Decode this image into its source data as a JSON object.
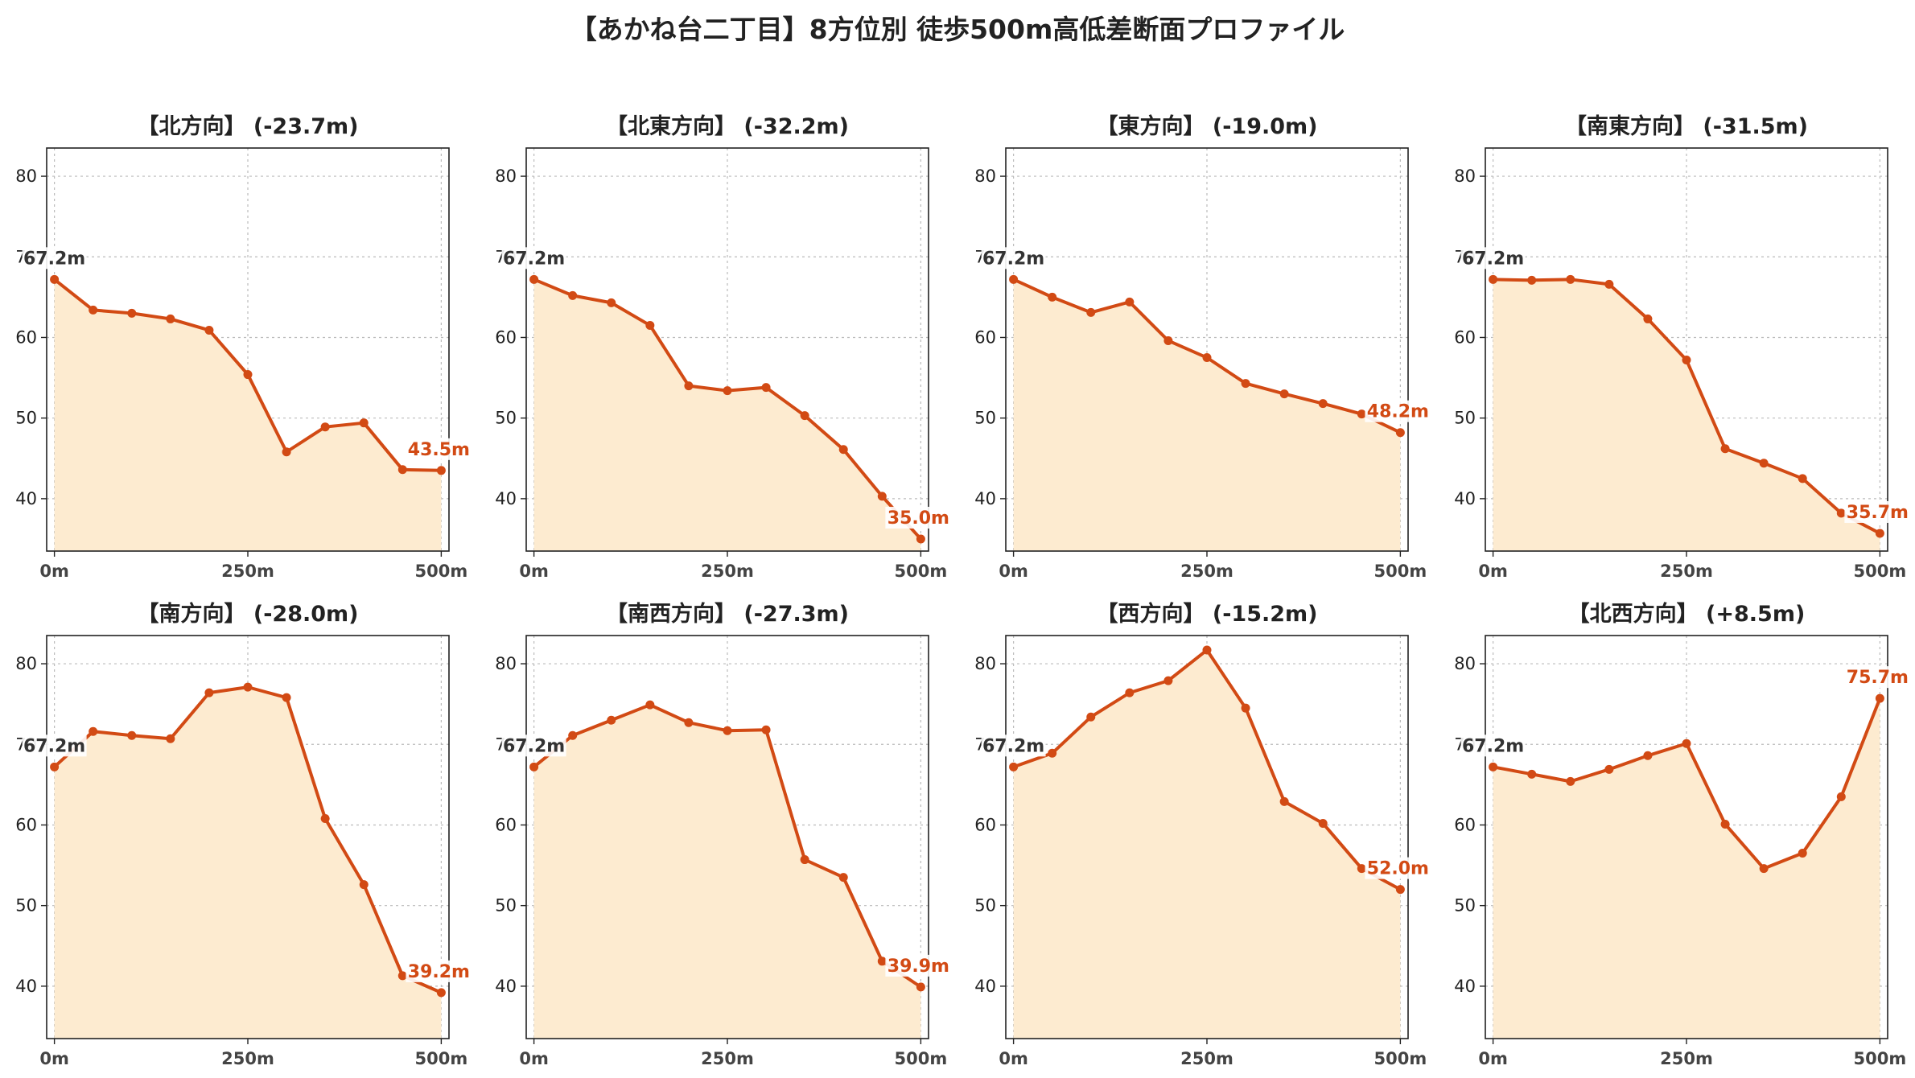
{
  "title": "【あかね台二丁目】8方位別 徒歩500m高低差断面プロファイル",
  "colors": {
    "line": "#d24a14",
    "fill": "#fdebd0",
    "grid": "#bbbbbb",
    "start_label": "#333333",
    "end_label": "#d24a14"
  },
  "chart_data": [
    {
      "type": "area",
      "title": "【北方向】 (-23.7m)",
      "x": [
        0,
        50,
        100,
        150,
        200,
        250,
        300,
        350,
        400,
        450,
        500
      ],
      "values": [
        67.2,
        63.4,
        63.0,
        62.3,
        60.9,
        55.4,
        45.8,
        48.9,
        49.4,
        43.6,
        43.5
      ],
      "xticks": [
        "0m",
        "250m",
        "500m"
      ],
      "yticks": [
        40,
        50,
        60,
        70,
        80
      ],
      "ylim": [
        33.5,
        83.5
      ],
      "xlim": [
        -10,
        510
      ],
      "start_label": "67.2m",
      "end_label": "43.5m"
    },
    {
      "type": "area",
      "title": "【北東方向】 (-32.2m)",
      "x": [
        0,
        50,
        100,
        150,
        200,
        250,
        300,
        350,
        400,
        450,
        500
      ],
      "values": [
        67.2,
        65.2,
        64.3,
        61.5,
        54.0,
        53.4,
        53.8,
        50.3,
        46.1,
        40.3,
        35.0
      ],
      "xticks": [
        "0m",
        "250m",
        "500m"
      ],
      "yticks": [
        40,
        50,
        60,
        70,
        80
      ],
      "ylim": [
        33.5,
        83.5
      ],
      "xlim": [
        -10,
        510
      ],
      "start_label": "67.2m",
      "end_label": "35.0m"
    },
    {
      "type": "area",
      "title": "【東方向】 (-19.0m)",
      "x": [
        0,
        50,
        100,
        150,
        200,
        250,
        300,
        350,
        400,
        450,
        500
      ],
      "values": [
        67.2,
        65.0,
        63.1,
        64.4,
        59.6,
        57.5,
        54.3,
        53.0,
        51.8,
        50.5,
        48.2
      ],
      "xticks": [
        "0m",
        "250m",
        "500m"
      ],
      "yticks": [
        40,
        50,
        60,
        70,
        80
      ],
      "ylim": [
        33.5,
        83.5
      ],
      "xlim": [
        -10,
        510
      ],
      "start_label": "67.2m",
      "end_label": "48.2m"
    },
    {
      "type": "area",
      "title": "【南東方向】 (-31.5m)",
      "x": [
        0,
        50,
        100,
        150,
        200,
        250,
        300,
        350,
        400,
        450,
        500
      ],
      "values": [
        67.2,
        67.1,
        67.2,
        66.6,
        62.3,
        57.2,
        46.2,
        44.4,
        42.5,
        38.2,
        35.7
      ],
      "xticks": [
        "0m",
        "250m",
        "500m"
      ],
      "yticks": [
        40,
        50,
        60,
        70,
        80
      ],
      "ylim": [
        33.5,
        83.5
      ],
      "xlim": [
        -10,
        510
      ],
      "start_label": "67.2m",
      "end_label": "35.7m"
    },
    {
      "type": "area",
      "title": "【南方向】 (-28.0m)",
      "x": [
        0,
        50,
        100,
        150,
        200,
        250,
        300,
        350,
        400,
        450,
        500
      ],
      "values": [
        67.2,
        71.6,
        71.1,
        70.7,
        76.4,
        77.1,
        75.8,
        60.8,
        52.6,
        41.3,
        39.2
      ],
      "xticks": [
        "0m",
        "250m",
        "500m"
      ],
      "yticks": [
        40,
        50,
        60,
        70,
        80
      ],
      "ylim": [
        33.5,
        83.5
      ],
      "xlim": [
        -10,
        510
      ],
      "start_label": "67.2m",
      "end_label": "39.2m"
    },
    {
      "type": "area",
      "title": "【南西方向】 (-27.3m)",
      "x": [
        0,
        50,
        100,
        150,
        200,
        250,
        300,
        350,
        400,
        450,
        500
      ],
      "values": [
        67.2,
        71.1,
        73.0,
        74.9,
        72.7,
        71.7,
        71.8,
        55.7,
        53.5,
        43.1,
        39.9
      ],
      "xticks": [
        "0m",
        "250m",
        "500m"
      ],
      "yticks": [
        40,
        50,
        60,
        70,
        80
      ],
      "ylim": [
        33.5,
        83.5
      ],
      "xlim": [
        -10,
        510
      ],
      "start_label": "67.2m",
      "end_label": "39.9m"
    },
    {
      "type": "area",
      "title": "【西方向】 (-15.2m)",
      "x": [
        0,
        50,
        100,
        150,
        200,
        250,
        300,
        350,
        400,
        450,
        500
      ],
      "values": [
        67.2,
        68.9,
        73.4,
        76.4,
        77.9,
        81.7,
        74.5,
        62.9,
        60.2,
        54.6,
        52.0
      ],
      "xticks": [
        "0m",
        "250m",
        "500m"
      ],
      "yticks": [
        40,
        50,
        60,
        70,
        80
      ],
      "ylim": [
        33.5,
        83.5
      ],
      "xlim": [
        -10,
        510
      ],
      "start_label": "67.2m",
      "end_label": "52.0m"
    },
    {
      "type": "area",
      "title": "【北西方向】 (+8.5m)",
      "x": [
        0,
        50,
        100,
        150,
        200,
        250,
        300,
        350,
        400,
        450,
        500
      ],
      "values": [
        67.2,
        66.3,
        65.4,
        66.9,
        68.6,
        70.1,
        60.1,
        54.6,
        56.5,
        63.5,
        75.7
      ],
      "xticks": [
        "0m",
        "250m",
        "500m"
      ],
      "yticks": [
        40,
        50,
        60,
        70,
        80
      ],
      "ylim": [
        33.5,
        83.5
      ],
      "xlim": [
        -10,
        510
      ],
      "start_label": "67.2m",
      "end_label": "75.7m"
    }
  ]
}
